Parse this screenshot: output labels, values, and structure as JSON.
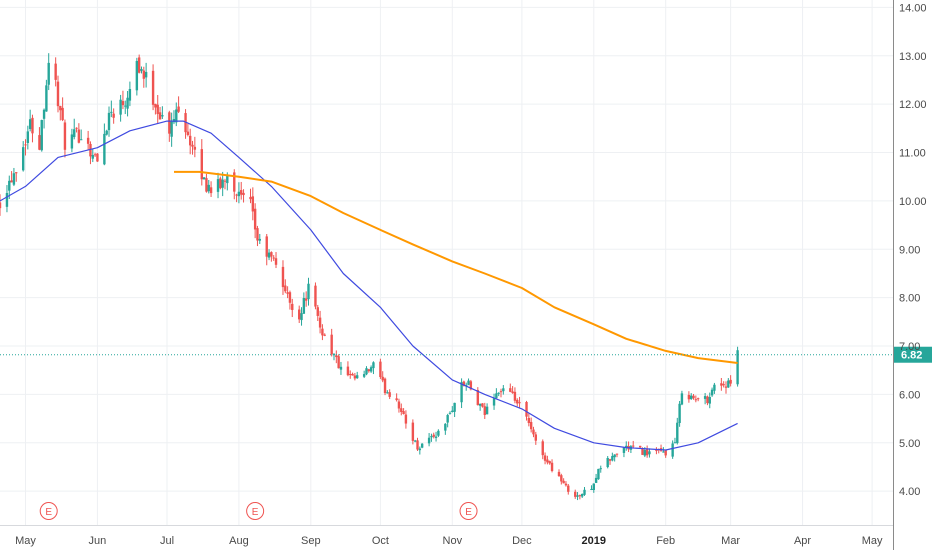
{
  "colors": {
    "up": "#26a69a",
    "down": "#ef5350",
    "ma_fast": "#3f4ae0",
    "ma_slow": "#ff9800",
    "last_price_line": "#26a69a",
    "earnings": "#ef5350"
  },
  "chart_data": {
    "type": "candlestick",
    "xlim": [
      "2018-04-20",
      "2019-05-10"
    ],
    "ylim": [
      3.3,
      14.05
    ],
    "grid": true,
    "y_ticks": [
      "4.00",
      "5.00",
      "6.00",
      "7.00",
      "8.00",
      "9.00",
      "10.00",
      "11.00",
      "12.00",
      "13.00",
      "14.00"
    ],
    "x_ticks": [
      {
        "label": "May",
        "date": "2018-05-01",
        "bold": false
      },
      {
        "label": "Jun",
        "date": "2018-06-01",
        "bold": false
      },
      {
        "label": "Jul",
        "date": "2018-07-01",
        "bold": false
      },
      {
        "label": "Aug",
        "date": "2018-08-01",
        "bold": false
      },
      {
        "label": "Sep",
        "date": "2018-09-01",
        "bold": false
      },
      {
        "label": "Oct",
        "date": "2018-10-01",
        "bold": false
      },
      {
        "label": "Nov",
        "date": "2018-11-01",
        "bold": false
      },
      {
        "label": "Dec",
        "date": "2018-12-01",
        "bold": false
      },
      {
        "label": "2019",
        "date": "2019-01-01",
        "bold": true
      },
      {
        "label": "Feb",
        "date": "2019-02-01",
        "bold": false
      },
      {
        "label": "Mar",
        "date": "2019-03-01",
        "bold": false
      },
      {
        "label": "Apr",
        "date": "2019-04-01",
        "bold": false
      },
      {
        "label": "May",
        "date": "2019-05-01",
        "bold": false
      }
    ],
    "last_price": {
      "value": 6.82,
      "label": "6.82"
    },
    "earnings_markers": [
      {
        "date": "2018-05-11",
        "label": "E"
      },
      {
        "date": "2018-08-08",
        "label": "E"
      },
      {
        "date": "2018-11-08",
        "label": "E"
      }
    ],
    "close_path": [
      [
        "2018-04-20",
        10.0
      ],
      [
        "2018-04-27",
        10.7
      ],
      [
        "2018-05-03",
        11.6
      ],
      [
        "2018-05-07",
        11.2
      ],
      [
        "2018-05-11",
        12.9
      ],
      [
        "2018-05-14",
        12.4
      ],
      [
        "2018-05-18",
        11.2
      ],
      [
        "2018-05-25",
        11.4
      ],
      [
        "2018-06-01",
        10.8
      ],
      [
        "2018-06-06",
        11.8
      ],
      [
        "2018-06-13",
        12.1
      ],
      [
        "2018-06-18",
        12.9
      ],
      [
        "2018-06-22",
        12.5
      ],
      [
        "2018-06-27",
        11.9
      ],
      [
        "2018-07-02",
        11.4
      ],
      [
        "2018-07-06",
        12.0
      ],
      [
        "2018-07-10",
        11.4
      ],
      [
        "2018-07-13",
        10.9
      ],
      [
        "2018-07-18",
        10.3
      ],
      [
        "2018-07-24",
        10.3
      ],
      [
        "2018-07-27",
        10.6
      ],
      [
        "2018-08-01",
        10.1
      ],
      [
        "2018-08-06",
        9.9
      ],
      [
        "2018-08-09",
        9.2
      ],
      [
        "2018-08-13",
        8.9
      ],
      [
        "2018-08-17",
        8.7
      ],
      [
        "2018-08-22",
        8.0
      ],
      [
        "2018-08-27",
        7.6
      ],
      [
        "2018-08-31",
        8.2
      ],
      [
        "2018-09-05",
        7.4
      ],
      [
        "2018-09-10",
        6.9
      ],
      [
        "2018-09-14",
        6.5
      ],
      [
        "2018-09-19",
        6.3
      ],
      [
        "2018-09-24",
        6.4
      ],
      [
        "2018-09-28",
        6.6
      ],
      [
        "2018-10-03",
        6.1
      ],
      [
        "2018-10-08",
        5.9
      ],
      [
        "2018-10-12",
        5.4
      ],
      [
        "2018-10-17",
        4.9
      ],
      [
        "2018-10-22",
        5.1
      ],
      [
        "2018-10-26",
        5.2
      ],
      [
        "2018-10-31",
        5.6
      ],
      [
        "2018-11-05",
        6.2
      ],
      [
        "2018-11-08",
        6.2
      ],
      [
        "2018-11-12",
        5.8
      ],
      [
        "2018-11-15",
        5.6
      ],
      [
        "2018-11-19",
        6.0
      ],
      [
        "2018-11-23",
        6.1
      ],
      [
        "2018-11-28",
        5.9
      ],
      [
        "2018-12-03",
        5.5
      ],
      [
        "2018-12-07",
        5.0
      ],
      [
        "2018-12-12",
        4.6
      ],
      [
        "2018-12-17",
        4.3
      ],
      [
        "2018-12-21",
        4.0
      ],
      [
        "2018-12-26",
        3.9
      ],
      [
        "2018-12-31",
        4.1
      ],
      [
        "2019-01-04",
        4.5
      ],
      [
        "2019-01-09",
        4.7
      ],
      [
        "2019-01-14",
        4.9
      ],
      [
        "2019-01-18",
        4.9
      ],
      [
        "2019-01-23",
        4.8
      ],
      [
        "2019-01-28",
        4.8
      ],
      [
        "2019-02-01",
        4.8
      ],
      [
        "2019-02-05",
        5.0
      ],
      [
        "2019-02-08",
        6.1
      ],
      [
        "2019-02-13",
        5.9
      ],
      [
        "2019-02-19",
        5.9
      ],
      [
        "2019-02-22",
        6.2
      ],
      [
        "2019-02-27",
        6.2
      ],
      [
        "2019-03-01",
        6.2
      ],
      [
        "2019-03-04",
        6.82
      ]
    ],
    "series": [
      {
        "values": [
          [
            "2018-04-20",
            10.0
          ],
          [
            "2018-05-01",
            10.3
          ],
          [
            "2018-05-15",
            10.9
          ],
          [
            "2018-06-01",
            11.1
          ],
          [
            "2018-06-15",
            11.45
          ],
          [
            "2018-07-01",
            11.65
          ],
          [
            "2018-07-08",
            11.65
          ],
          [
            "2018-07-20",
            11.4
          ],
          [
            "2018-08-01",
            10.9
          ],
          [
            "2018-08-15",
            10.3
          ],
          [
            "2018-09-01",
            9.4
          ],
          [
            "2018-09-15",
            8.5
          ],
          [
            "2018-10-01",
            7.8
          ],
          [
            "2018-10-15",
            7.0
          ],
          [
            "2018-11-01",
            6.3
          ],
          [
            "2018-11-15",
            6.0
          ],
          [
            "2018-12-01",
            5.7
          ],
          [
            "2018-12-15",
            5.3
          ],
          [
            "2019-01-01",
            5.0
          ],
          [
            "2019-01-15",
            4.9
          ],
          [
            "2019-02-01",
            4.85
          ],
          [
            "2019-02-15",
            5.0
          ],
          [
            "2019-03-04",
            5.4
          ]
        ]
      },
      {
        "values": [
          [
            "2018-07-04",
            10.6
          ],
          [
            "2018-07-15",
            10.6
          ],
          [
            "2018-08-01",
            10.5
          ],
          [
            "2018-08-15",
            10.4
          ],
          [
            "2018-09-01",
            10.1
          ],
          [
            "2018-09-15",
            9.75
          ],
          [
            "2018-10-01",
            9.4
          ],
          [
            "2018-10-15",
            9.1
          ],
          [
            "2018-11-01",
            8.75
          ],
          [
            "2018-11-15",
            8.5
          ],
          [
            "2018-12-01",
            8.2
          ],
          [
            "2018-12-15",
            7.8
          ],
          [
            "2019-01-01",
            7.45
          ],
          [
            "2019-01-15",
            7.15
          ],
          [
            "2019-02-01",
            6.9
          ],
          [
            "2019-02-15",
            6.75
          ],
          [
            "2019-03-04",
            6.65
          ]
        ]
      }
    ]
  }
}
